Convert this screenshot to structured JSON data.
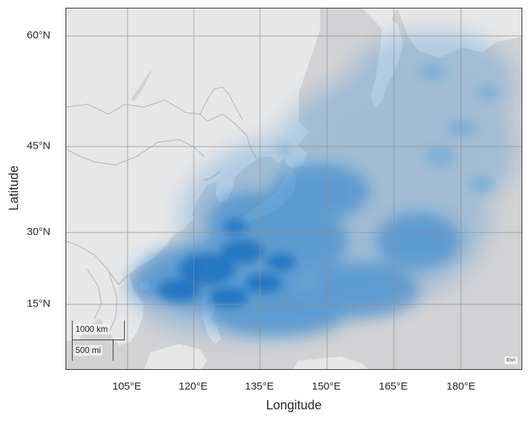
{
  "map": {
    "basemap": "light gray canvas",
    "colors": {
      "water": "#d2d2d4",
      "land": "#e7e7e8",
      "borders": "#bdbdbf",
      "graticule": "#8c8c8c",
      "density": "#0a6fc2"
    },
    "x_label": "Longitude",
    "y_label": "Latitude",
    "x_ticks": [
      "105°E",
      "120°E",
      "135°E",
      "150°E",
      "165°E",
      "180°E"
    ],
    "y_ticks": [
      "60°N",
      "45°N",
      "30°N",
      "15°N"
    ],
    "scale_bar": {
      "km_label": "1000 km",
      "mi_label": "500 mi"
    },
    "attribution": "Esri",
    "overlay": "blue track-density shading over the western Pacific"
  }
}
